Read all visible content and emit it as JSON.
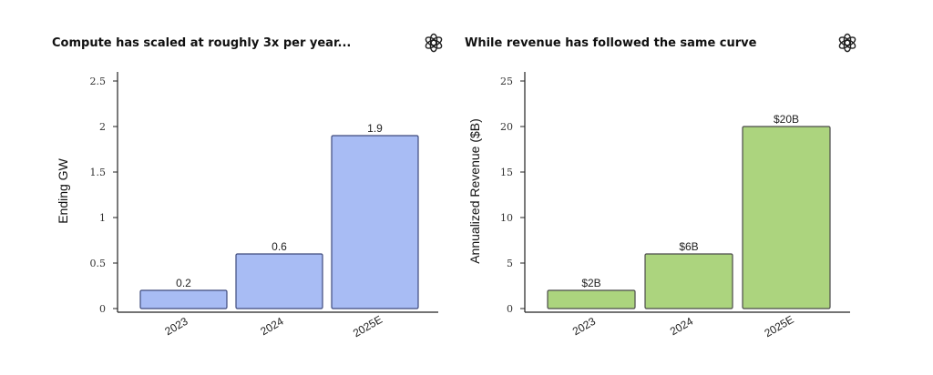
{
  "chart_data": [
    {
      "type": "bar",
      "title": "Compute has scaled at roughly 3x per year...",
      "xlabel": "",
      "ylabel": "Ending GW",
      "categories": [
        "2023",
        "2024",
        "2025E"
      ],
      "values": [
        0.2,
        0.6,
        1.9
      ],
      "data_labels": [
        "0.2",
        "0.6",
        "1.9"
      ],
      "yticks": [
        0,
        0.5,
        1,
        1.5,
        2,
        2.5
      ],
      "ytick_labels": [
        "0",
        "0.5",
        "1",
        "1.5",
        "2",
        "2.5"
      ],
      "ylim": [
        0,
        2.5
      ],
      "grid": false,
      "bar_color": "#a8bcf4",
      "edge_color": "#3e4a7c",
      "icon": "openai-logo-icon"
    },
    {
      "type": "bar",
      "title": "While revenue has followed the same curve",
      "xlabel": "",
      "ylabel": "Annualized Revenue ($B)",
      "categories": [
        "2023",
        "2024",
        "2025E"
      ],
      "values": [
        2,
        6,
        20
      ],
      "data_labels": [
        "$2B",
        "$6B",
        "$20B"
      ],
      "yticks": [
        0,
        5,
        10,
        15,
        20,
        25
      ],
      "ytick_labels": [
        "0",
        "5",
        "10",
        "15",
        "20",
        "25"
      ],
      "ylim": [
        0,
        25
      ],
      "grid": false,
      "bar_color": "#acd47e",
      "edge_color": "#4a4a4a",
      "icon": "openai-logo-icon"
    }
  ]
}
